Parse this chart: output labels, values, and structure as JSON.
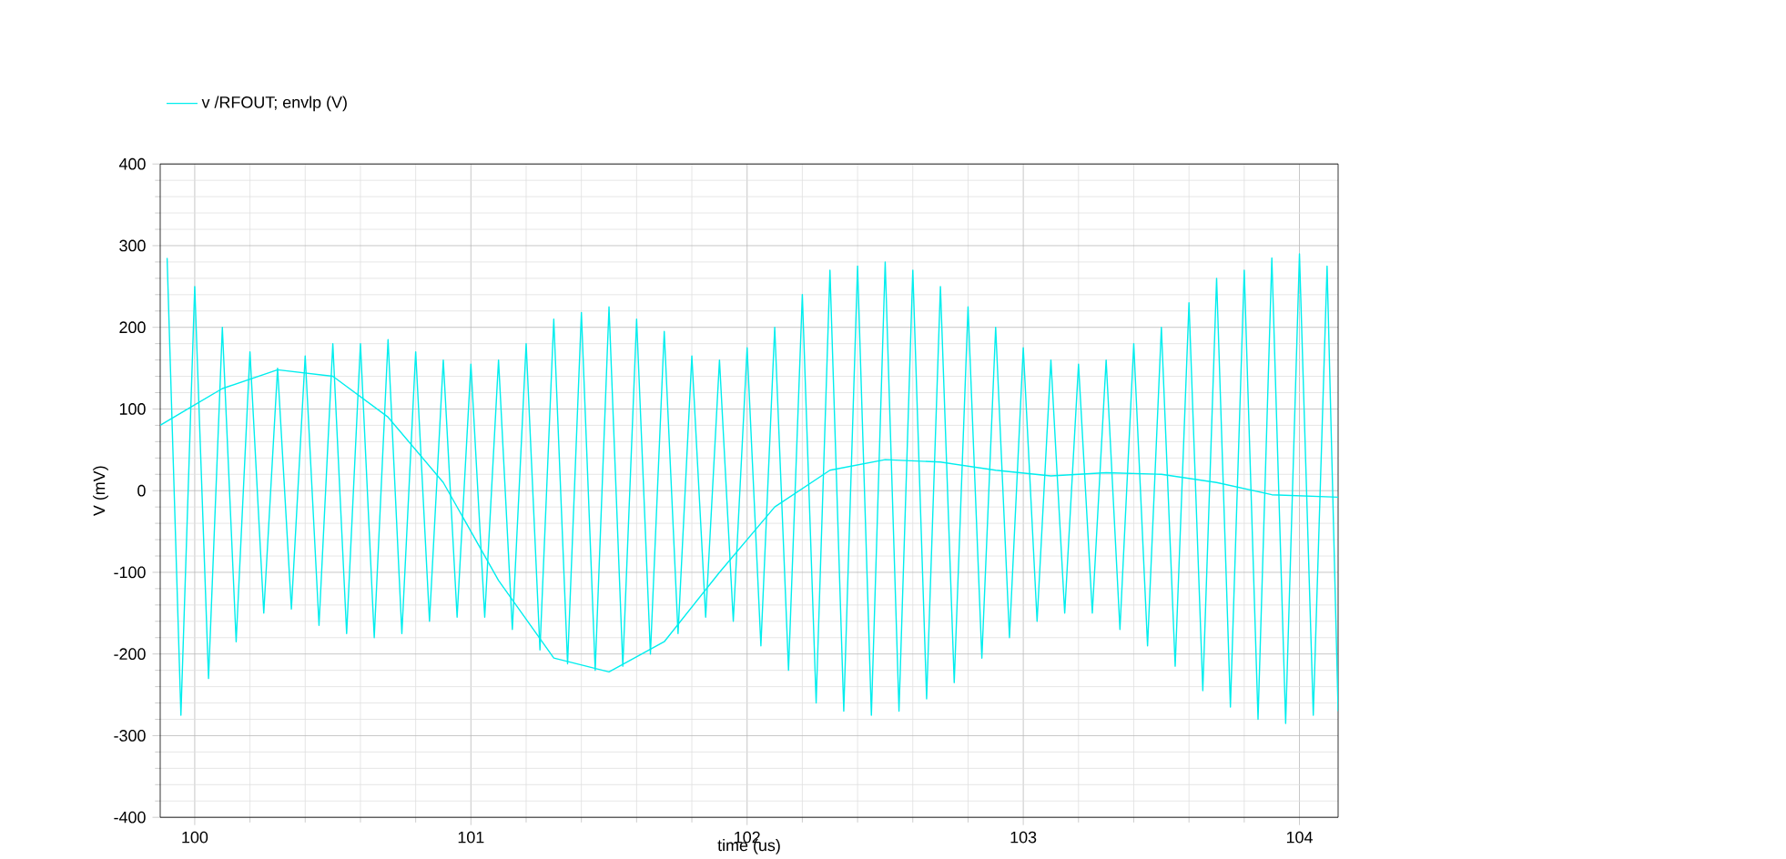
{
  "chart_data": {
    "type": "line",
    "xlabel": "time (us)",
    "ylabel": "V (mV)",
    "xlim": [
      99.875,
      104.14
    ],
    "ylim": [
      -400,
      400
    ],
    "xticks": [
      100,
      101,
      102,
      103,
      104
    ],
    "yticks": [
      -400,
      -300,
      -200,
      -100,
      0,
      100,
      200,
      300,
      400
    ],
    "grid": true,
    "legend": "top left",
    "marker": "none",
    "line_style": "solid",
    "series": [
      {
        "name": "v /RFOUT; envlp (V)",
        "color": "#00eeee",
        "x": [
          99.9,
          99.95,
          100.0,
          100.05,
          100.1,
          100.15,
          100.2,
          100.25,
          100.3,
          100.35,
          100.4,
          100.45,
          100.5,
          100.55,
          100.6,
          100.65,
          100.7,
          100.75,
          100.8,
          100.85,
          100.9,
          100.95,
          101.0,
          101.05,
          101.1,
          101.15,
          101.2,
          101.25,
          101.3,
          101.35,
          101.4,
          101.45,
          101.5,
          101.55,
          101.6,
          101.65,
          101.7,
          101.75,
          101.8,
          101.85,
          101.9,
          101.95,
          102.0,
          102.05,
          102.1,
          102.15,
          102.2,
          102.25,
          102.3,
          102.35,
          102.4,
          102.45,
          102.5,
          102.55,
          102.6,
          102.65,
          102.7,
          102.75,
          102.8,
          102.85,
          102.9,
          102.95,
          103.0,
          103.05,
          103.1,
          103.15,
          103.2,
          103.25,
          103.3,
          103.35,
          103.4,
          103.45,
          103.5,
          103.55,
          103.6,
          103.65,
          103.7,
          103.75,
          103.8,
          103.85,
          103.9,
          103.95,
          104.0,
          104.05,
          104.1,
          104.14
        ],
        "values": [
          285,
          -275,
          250,
          -230,
          200,
          -185,
          170,
          -150,
          150,
          -145,
          165,
          -165,
          180,
          -175,
          180,
          -180,
          185,
          -175,
          170,
          -160,
          160,
          -155,
          155,
          -155,
          160,
          -170,
          180,
          -195,
          210,
          -212,
          218,
          -220,
          225,
          -215,
          210,
          -200,
          195,
          -175,
          165,
          -155,
          160,
          -160,
          175,
          -190,
          200,
          -220,
          240,
          -260,
          270,
          -270,
          275,
          -275,
          280,
          -270,
          270,
          -255,
          250,
          -235,
          225,
          -205,
          200,
          -180,
          175,
          -160,
          160,
          -150,
          155,
          -150,
          160,
          -170,
          180,
          -190,
          200,
          -215,
          230,
          -245,
          260,
          -265,
          270,
          -280,
          285,
          -285,
          290,
          -275,
          275,
          -270
        ]
      },
      {
        "color": "#00eeee",
        "x": [
          99.875,
          100.0,
          100.1,
          100.3,
          100.5,
          100.7,
          100.9,
          101.1,
          101.3,
          101.5,
          101.7,
          101.9,
          102.1,
          102.3,
          102.5,
          102.7,
          102.9,
          103.1,
          103.3,
          103.5,
          103.7,
          103.9,
          104.14
        ],
        "values": [
          80,
          105,
          125,
          148,
          140,
          90,
          10,
          -110,
          -205,
          -222,
          -185,
          -100,
          -20,
          25,
          38,
          35,
          25,
          18,
          22,
          20,
          10,
          -5,
          -8
        ]
      }
    ]
  }
}
